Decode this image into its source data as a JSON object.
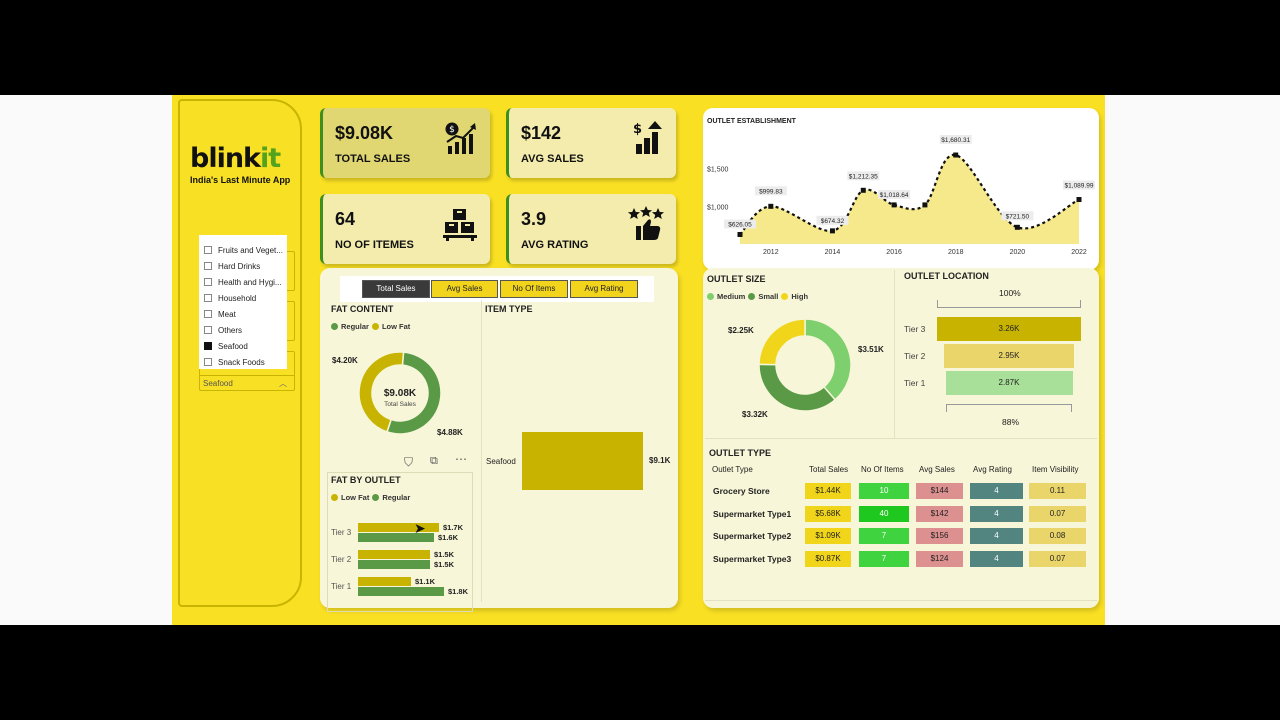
{
  "brand": {
    "name_main": "blink",
    "name_accent": "it",
    "tagline": "India's Last Minute App"
  },
  "slicer": {
    "items": [
      {
        "label": "Fruits and Veget...",
        "checked": false
      },
      {
        "label": "Hard Drinks",
        "checked": false
      },
      {
        "label": "Health and Hygi...",
        "checked": false
      },
      {
        "label": "Household",
        "checked": false
      },
      {
        "label": "Meat",
        "checked": false
      },
      {
        "label": "Others",
        "checked": false
      },
      {
        "label": "Seafood",
        "checked": true
      },
      {
        "label": "Snack Foods",
        "checked": false
      }
    ],
    "selected": "Seafood"
  },
  "kpis": [
    {
      "value": "$9.08K",
      "label": "TOTAL SALES",
      "icon": "sales-chart-icon"
    },
    {
      "value": "$142",
      "label": "AVG SALES",
      "icon": "growth-chart-icon"
    },
    {
      "value": "64",
      "label": "NO OF ITEMES",
      "icon": "boxes-icon"
    },
    {
      "value": "3.9",
      "label": "AVG RATING",
      "icon": "rating-thumbs-up-icon"
    }
  ],
  "tabs": [
    "Total Sales",
    "Avg Sales",
    "No Of Items",
    "Avg Rating"
  ],
  "fat_content": {
    "title": "FAT CONTENT",
    "legend": [
      "Regular",
      "Low Fat"
    ],
    "center_value": "$9.08K",
    "center_label": "Total Sales",
    "labels": [
      "$4.20K",
      "$4.88K"
    ]
  },
  "item_type": {
    "title": "ITEM TYPE",
    "category": "Seafood",
    "value_label": "$9.1K"
  },
  "fat_by_outlet": {
    "title": "FAT BY OUTLET",
    "legend": [
      "Low Fat",
      "Regular"
    ],
    "rows": [
      {
        "tier": "Tier 3",
        "low_label": "$1.7K",
        "reg_label": "$1.6K"
      },
      {
        "tier": "Tier 2",
        "low_label": "$1.5K",
        "reg_label": "$1.5K"
      },
      {
        "tier": "Tier 1",
        "low_label": "$1.1K",
        "reg_label": "$1.8K"
      }
    ]
  },
  "outlet_establishment": {
    "title": "OUTLET ESTABLISHMENT",
    "ytick_labels": [
      "$1,500",
      "$1,000"
    ],
    "xtick_labels": [
      "2012",
      "2014",
      "2016",
      "2018",
      "2020",
      "2022"
    ],
    "point_labels": [
      "$626.05",
      "$999.83",
      "$674.32",
      "$1,212.35",
      "$1,018.64",
      "$1,680.31",
      "$721.50",
      "$1,089.99"
    ]
  },
  "outlet_size": {
    "title": "OUTLET SIZE",
    "legend": [
      "Medium",
      "Small",
      "High"
    ],
    "labels": [
      "$2.25K",
      "$3.51K",
      "$3.32K"
    ]
  },
  "outlet_location": {
    "title": "OUTLET LOCATION",
    "top_label": "100%",
    "bottom_label": "88%",
    "rows": [
      {
        "tier": "Tier 3",
        "value": "3.26K"
      },
      {
        "tier": "Tier 2",
        "value": "2.95K"
      },
      {
        "tier": "Tier 1",
        "value": "2.87K"
      }
    ]
  },
  "outlet_type": {
    "title": "OUTLET TYPE",
    "headers": [
      "Outlet Type",
      "Total Sales",
      "No Of Items",
      "Avg Sales",
      "Avg Rating",
      "Item Visibility"
    ],
    "rows": [
      [
        "Grocery Store",
        "$1.44K",
        "10",
        "$144",
        "4",
        "0.11"
      ],
      [
        "Supermarket Type1",
        "$5.68K",
        "40",
        "$142",
        "4",
        "0.07"
      ],
      [
        "Supermarket Type2",
        "$1.09K",
        "7",
        "$156",
        "4",
        "0.08"
      ],
      [
        "Supermarket Type3",
        "$0.87K",
        "7",
        "$124",
        "4",
        "0.07"
      ]
    ]
  },
  "chart_data": [
    {
      "type": "area",
      "title": "OUTLET ESTABLISHMENT",
      "x": [
        2011,
        2012,
        2014,
        2015,
        2016,
        2017,
        2018,
        2020,
        2022
      ],
      "y": [
        626.05,
        999.83,
        674.32,
        1212.35,
        1018.64,
        1018.64,
        1680.31,
        721.5,
        1089.99
      ],
      "xlim": [
        2011,
        2022
      ],
      "ylim": [
        500,
        1800
      ],
      "grid": false
    },
    {
      "type": "pie",
      "title": "FAT CONTENT",
      "categories": [
        "Regular",
        "Low Fat"
      ],
      "values": [
        4.2,
        4.88
      ],
      "colors": [
        "#c8b400",
        "#5a9a46"
      ]
    },
    {
      "type": "pie",
      "title": "OUTLET SIZE",
      "categories": [
        "Medium",
        "Small",
        "High"
      ],
      "values": [
        3.51,
        3.32,
        2.25
      ],
      "colors": [
        "#7ecf6e",
        "#5a9a46",
        "#f1d51b"
      ]
    },
    {
      "type": "bar",
      "title": "FAT BY OUTLET",
      "categories": [
        "Tier 3",
        "Tier 2",
        "Tier 1"
      ],
      "series": [
        {
          "name": "Low Fat",
          "values": [
            1.7,
            1.5,
            1.1
          ]
        },
        {
          "name": "Regular",
          "values": [
            1.6,
            1.5,
            1.8
          ]
        }
      ]
    },
    {
      "type": "bar",
      "title": "ITEM TYPE",
      "categories": [
        "Seafood"
      ],
      "values": [
        9.1
      ]
    },
    {
      "type": "bar",
      "title": "OUTLET LOCATION",
      "categories": [
        "Tier 3",
        "Tier 2",
        "Tier 1"
      ],
      "values": [
        3.26,
        2.95,
        2.87
      ]
    }
  ],
  "colors": {
    "page": "#f9e023",
    "card": "#f7f6d8",
    "accent_green": "#5a9a46",
    "accent_olive": "#c8b400",
    "light_green": "#7ecf6e"
  }
}
